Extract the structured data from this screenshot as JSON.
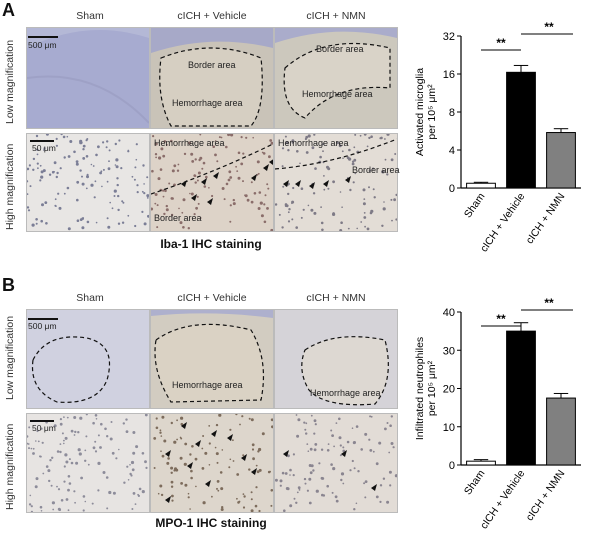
{
  "panel_a": {
    "letter": "A",
    "columns": [
      "Sham",
      "cICH + Vehicle",
      "cICH + NMN"
    ],
    "rows": [
      "Low magnification",
      "High magnification"
    ],
    "scale_low": "500 μm",
    "scale_high": "50 μm",
    "annotations": {
      "vehicle_low_border": "Border area",
      "vehicle_low_hemorrhage": "Hemorrhage area",
      "nmn_low_border": "Border area",
      "nmn_low_hemorrhage": "Hemorrhage area",
      "vehicle_high_hemorrhage": "Hemorrhage area",
      "vehicle_high_border": "Border area",
      "nmn_high_hemorrhage": "Hemorrhage area",
      "nmn_high_border": "Border area"
    },
    "caption": "Iba-1 IHC staining",
    "colors": {
      "low_bg": "#b8bcd8",
      "high_bg": "#e8e4e2"
    }
  },
  "panel_b": {
    "letter": "B",
    "columns": [
      "Sham",
      "cICH + Vehicle",
      "cICH + NMN"
    ],
    "rows": [
      "Low magnification",
      "High magnification"
    ],
    "scale_low": "500 μm",
    "scale_high": "50 μm",
    "annotations": {
      "vehicle_low_hemorrhage": "Hemorrhage area",
      "nmn_low_hemorrhage": "Hemorrhage area"
    },
    "caption": "MPO-1 IHC staining",
    "colors": {
      "low_bg": "#c7c8dc",
      "high_bg": "#e6e2e0"
    }
  },
  "chart_data": [
    {
      "type": "bar",
      "categories": [
        "Sham",
        "cICH + Vehicle",
        "cICH + NMN"
      ],
      "values": [
        0.5,
        16.5,
        5.5
      ],
      "errors": [
        0.1,
        2.2,
        0.4
      ],
      "ylabel": "Activated microglia per 10⁵ μm²",
      "yscale": "log2",
      "yticks": [
        "0",
        "4",
        "8",
        "16",
        "32"
      ],
      "ylim": [
        0,
        32
      ],
      "significance": [
        "**",
        "**"
      ],
      "bar_colors": [
        "#ffffff",
        "#000000",
        "#808080"
      ]
    },
    {
      "type": "bar",
      "categories": [
        "Sham",
        "cICH + Vehicle",
        "cICH + NMN"
      ],
      "values": [
        1.0,
        35.0,
        17.5
      ],
      "errors": [
        0.4,
        2.2,
        1.2
      ],
      "ylabel": "Infiltrated neutrophiles per 10⁵ μm²",
      "yticks": [
        "0",
        "10",
        "20",
        "30",
        "40"
      ],
      "ylim": [
        0,
        40
      ],
      "significance": [
        "**",
        "**"
      ],
      "bar_colors": [
        "#ffffff",
        "#000000",
        "#808080"
      ]
    }
  ]
}
